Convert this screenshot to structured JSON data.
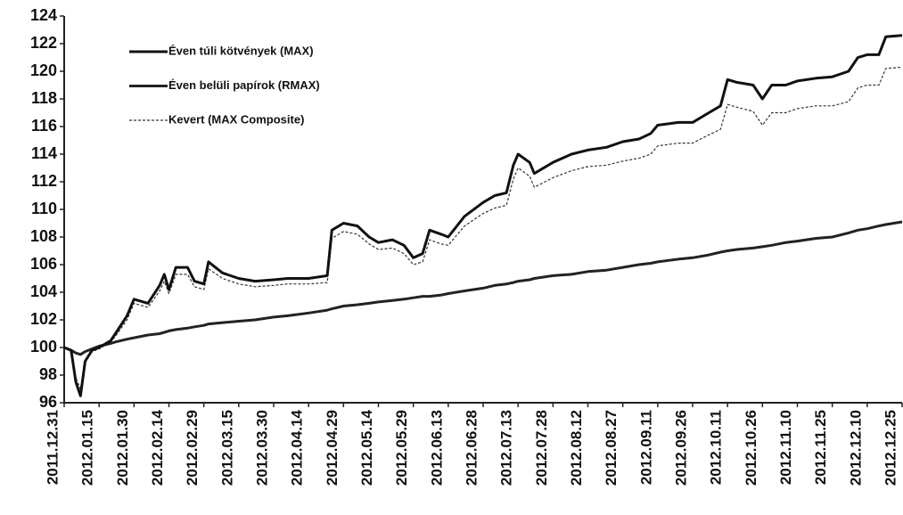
{
  "chart_data": {
    "type": "line",
    "x": [
      "2011.12.31",
      "2012.01.03",
      "2012.01.05",
      "2012.01.07",
      "2012.01.09",
      "2012.01.12",
      "2012.01.15",
      "2012.01.20",
      "2012.01.22",
      "2012.01.27",
      "2012.01.30",
      "2012.02.05",
      "2012.02.10",
      "2012.02.12",
      "2012.02.14",
      "2012.02.17",
      "2012.02.22",
      "2012.02.25",
      "2012.02.29",
      "2012.03.02",
      "2012.03.08",
      "2012.03.15",
      "2012.03.22",
      "2012.03.30",
      "2012.04.05",
      "2012.04.14",
      "2012.04.22",
      "2012.04.24",
      "2012.04.29",
      "2012.05.05",
      "2012.05.10",
      "2012.05.14",
      "2012.05.20",
      "2012.05.25",
      "2012.05.29",
      "2012.06.02",
      "2012.06.05",
      "2012.06.10",
      "2012.06.13",
      "2012.06.20",
      "2012.06.28",
      "2012.07.03",
      "2012.07.08",
      "2012.07.11",
      "2012.07.13",
      "2012.07.18",
      "2012.07.20",
      "2012.07.28",
      "2012.08.05",
      "2012.08.12",
      "2012.08.20",
      "2012.08.27",
      "2012.09.03",
      "2012.09.08",
      "2012.09.11",
      "2012.09.20",
      "2012.09.26",
      "2012.10.03",
      "2012.10.08",
      "2012.10.11",
      "2012.10.15",
      "2012.10.22",
      "2012.10.26",
      "2012.10.30",
      "2012.11.05",
      "2012.11.10",
      "2012.11.18",
      "2012.11.25",
      "2012.12.02",
      "2012.12.06",
      "2012.12.10",
      "2012.12.15",
      "2012.12.18",
      "2012.12.25"
    ],
    "series": [
      {
        "name": "Éven túli kötvények (MAX)",
        "color": "#111111",
        "style": "solid",
        "values": [
          100,
          99.8,
          97.5,
          96.5,
          99.0,
          99.8,
          100.0,
          100.5,
          101.0,
          102.3,
          103.5,
          103.2,
          104.5,
          105.3,
          104.2,
          105.8,
          105.8,
          104.8,
          104.6,
          106.2,
          105.4,
          105.0,
          104.8,
          104.9,
          105.0,
          105.0,
          105.2,
          108.5,
          109.0,
          108.8,
          108.0,
          107.6,
          107.8,
          107.4,
          106.5,
          106.8,
          108.5,
          108.2,
          108.0,
          109.5,
          110.5,
          111.0,
          111.2,
          113.2,
          114.0,
          113.4,
          112.6,
          113.4,
          114.0,
          114.3,
          114.5,
          114.9,
          115.1,
          115.5,
          116.1,
          116.3,
          116.3,
          117.0,
          117.5,
          119.4,
          119.2,
          119.0,
          118.0,
          119.0,
          119.0,
          119.3,
          119.5,
          119.6,
          120.0,
          121.0,
          121.2,
          121.2,
          122.5,
          122.6
        ]
      },
      {
        "name": "Éven belüli papírok (RMAX)",
        "color": "#222222",
        "style": "solid",
        "values": [
          100,
          99.8,
          99.6,
          99.5,
          99.7,
          99.9,
          100.1,
          100.3,
          100.4,
          100.6,
          100.7,
          100.9,
          101.0,
          101.1,
          101.2,
          101.3,
          101.4,
          101.5,
          101.6,
          101.7,
          101.8,
          101.9,
          102.0,
          102.2,
          102.3,
          102.5,
          102.7,
          102.8,
          103.0,
          103.1,
          103.2,
          103.3,
          103.4,
          103.5,
          103.6,
          103.7,
          103.7,
          103.8,
          103.9,
          104.1,
          104.3,
          104.5,
          104.6,
          104.7,
          104.8,
          104.9,
          105.0,
          105.2,
          105.3,
          105.5,
          105.6,
          105.8,
          106.0,
          106.1,
          106.2,
          106.4,
          106.5,
          106.7,
          106.9,
          107.0,
          107.1,
          107.2,
          107.3,
          107.4,
          107.6,
          107.7,
          107.9,
          108.0,
          108.3,
          108.5,
          108.6,
          108.8,
          108.9,
          109.1
        ]
      },
      {
        "name": "Kevert (MAX Composite)",
        "color": "#333333",
        "style": "dashed",
        "values": [
          100,
          99.7,
          97.8,
          97.0,
          99.0,
          99.7,
          99.9,
          100.4,
          100.8,
          102.0,
          103.2,
          102.9,
          104.1,
          104.8,
          103.9,
          105.3,
          105.3,
          104.4,
          104.2,
          105.7,
          105.0,
          104.6,
          104.4,
          104.5,
          104.6,
          104.6,
          104.7,
          107.9,
          108.4,
          108.2,
          107.5,
          107.1,
          107.2,
          106.8,
          106.0,
          106.2,
          107.8,
          107.5,
          107.4,
          108.8,
          109.7,
          110.1,
          110.3,
          112.2,
          113.0,
          112.4,
          111.6,
          112.3,
          112.8,
          113.1,
          113.2,
          113.5,
          113.7,
          114.0,
          114.6,
          114.8,
          114.8,
          115.4,
          115.8,
          117.6,
          117.4,
          117.1,
          116.1,
          117.0,
          117.0,
          117.3,
          117.5,
          117.5,
          117.8,
          118.8,
          119.0,
          119.0,
          120.2,
          120.3
        ]
      }
    ],
    "xlim": [
      "2011.12.31",
      "2012.12.25"
    ],
    "xticks": [
      "2011.12.31",
      "2012.01.15",
      "2012.01.30",
      "2012.02.14",
      "2012.02.29",
      "2012.03.15",
      "2012.03.30",
      "2012.04.14",
      "2012.04.29",
      "2012.05.14",
      "2012.05.29",
      "2012.06.13",
      "2012.06.28",
      "2012.07.13",
      "2012.07.28",
      "2012.08.12",
      "2012.08.27",
      "2012.09.11",
      "2012.09.26",
      "2012.10.11",
      "2012.10.26",
      "2012.11.10",
      "2012.11.25",
      "2012.12.10",
      "2012.12.25"
    ],
    "ylim": [
      96,
      124
    ],
    "yticks": [
      96,
      98,
      100,
      102,
      104,
      106,
      108,
      110,
      112,
      114,
      116,
      118,
      120,
      122,
      124
    ],
    "grid": false,
    "legend": "upper left"
  }
}
